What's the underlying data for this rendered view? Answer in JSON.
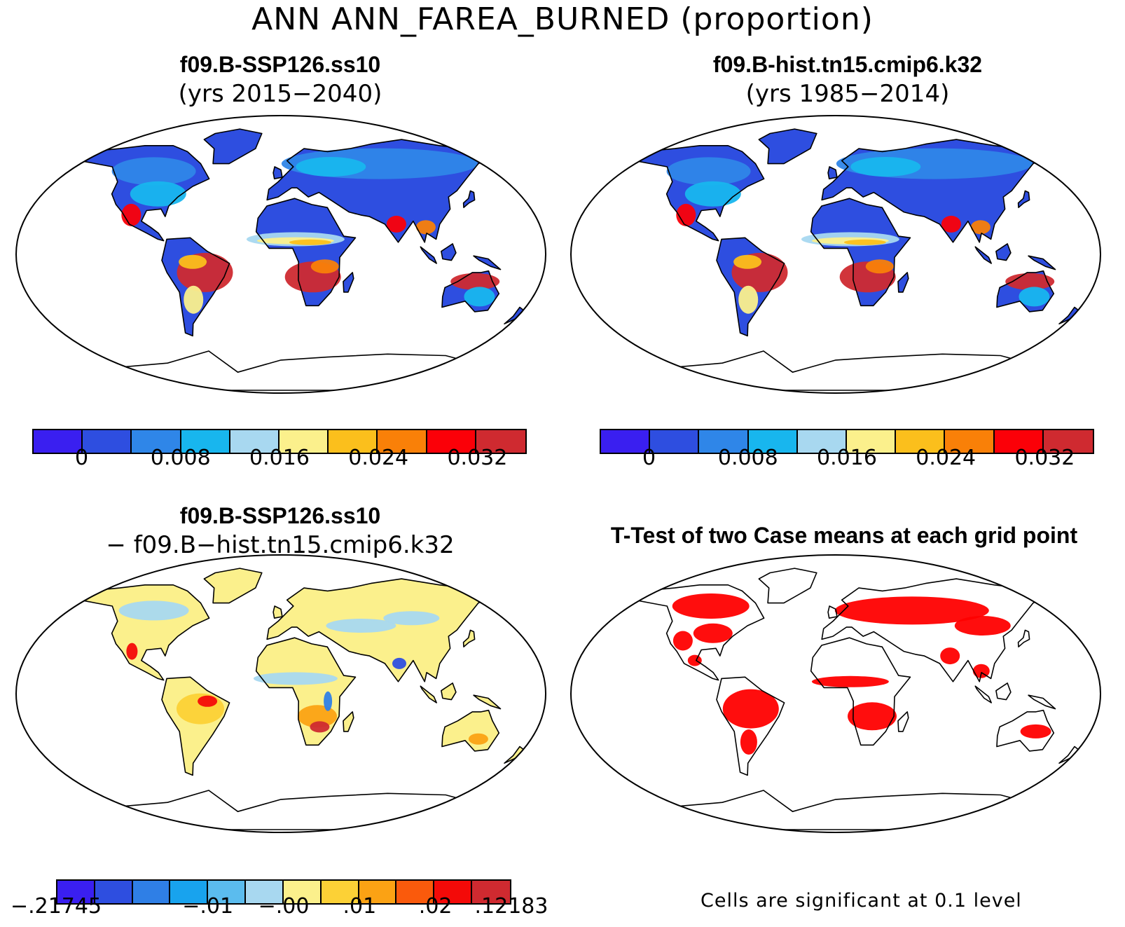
{
  "figure": {
    "title": "ANN ANN_FAREA_BURNED (proportion)"
  },
  "panels": [
    {
      "id": "case",
      "title_line1": "f09.B-SSP126.ss10",
      "title_line2": "(yrs 2015−2040)",
      "colors": [
        "#3a1ff0",
        "#2e4ee0",
        "#2f86e8",
        "#18b6ee",
        "#a8d8f0",
        "#fbf08c",
        "#fbbf1c",
        "#f98008",
        "#fb0008",
        "#cf2a30"
      ],
      "tick_labels": [
        "0",
        "0.008",
        "0.016",
        "0.024",
        "0.032"
      ]
    },
    {
      "id": "control",
      "title_line1": "f09.B-hist.tn15.cmip6.k32",
      "title_line2": "(yrs 1985−2014)",
      "colors": [
        "#3a1ff0",
        "#2e4ee0",
        "#2f86e8",
        "#18b6ee",
        "#a8d8f0",
        "#fbf08c",
        "#fbbf1c",
        "#f98008",
        "#fb0008",
        "#cf2a30"
      ],
      "tick_labels": [
        "0",
        "0.008",
        "0.016",
        "0.024",
        "0.032"
      ]
    },
    {
      "id": "difference",
      "title_line1": "f09.B-SSP126.ss10",
      "title_line2": "− f09.B−hist.tn15.cmip6.k32",
      "colors": [
        "#3a1ff0",
        "#2e4ee0",
        "#2f7fe6",
        "#18a3ee",
        "#5bbcee",
        "#a8d8f0",
        "#fbf08c",
        "#fcd136",
        "#fba214",
        "#fa5a0c",
        "#f40a08",
        "#cf2a30"
      ],
      "tick_labels": [
        "−.21745",
        "−.01",
        "−.00",
        ".01",
        ".02",
        ".12183"
      ]
    },
    {
      "id": "ttest",
      "title_line1": "T-Test of two Case means at each grid point",
      "footnote": "Cells are significant at 0.1 level"
    }
  ],
  "legend": {
    "significant_color": "#ff0000"
  }
}
